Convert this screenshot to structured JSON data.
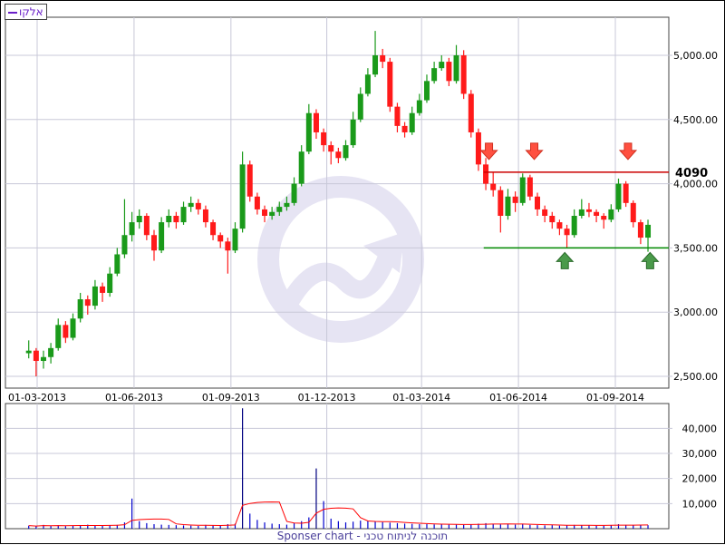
{
  "legend": {
    "label": "אלקו",
    "color": "#6a1fc8"
  },
  "footer": "Sponser chart - תוכנה לניתוח טכני",
  "colors": {
    "up": "#1a9a1a",
    "down": "#ff1a1a",
    "volume": "#0000cc",
    "volume_ma": "#ff0000",
    "grid": "#c8c8d8",
    "resistance": "#cc0000",
    "support": "#008800",
    "watermark": "#e6e4f3"
  },
  "chart_data": [
    {
      "type": "candlestick",
      "title": "",
      "ylim": [
        2400,
        5200
      ],
      "yticks": [
        2500,
        3000,
        3500,
        4000,
        4500,
        5000
      ],
      "ytick_labels": [
        "2,500.00",
        "3,000.00",
        "3,500.00",
        "4,000.00",
        "4,500.00",
        "5,000.00"
      ],
      "xticks": [
        "2013-03-01",
        "2013-06-01",
        "2013-09-01",
        "2013-12-01",
        "2014-03-01",
        "2014-06-01",
        "2014-09-01"
      ],
      "xtick_labels": [
        "01-03-2013",
        "01-06-2013",
        "01-09-2013",
        "01-12-2013",
        "01-03-2014",
        "01-06-2014",
        "01-09-2014"
      ],
      "grid": true,
      "candles": [
        [
          "2013-02-21",
          2680,
          2780,
          2640,
          2700
        ],
        [
          "2013-02-28",
          2700,
          2720,
          2500,
          2620
        ],
        [
          "2013-03-07",
          2620,
          2700,
          2560,
          2650
        ],
        [
          "2013-03-14",
          2650,
          2760,
          2600,
          2720
        ],
        [
          "2013-03-21",
          2720,
          2950,
          2700,
          2900
        ],
        [
          "2013-03-28",
          2900,
          2930,
          2760,
          2800
        ],
        [
          "2013-04-04",
          2800,
          2990,
          2780,
          2950
        ],
        [
          "2013-04-11",
          2950,
          3150,
          2920,
          3100
        ],
        [
          "2013-04-18",
          3100,
          3130,
          2980,
          3050
        ],
        [
          "2013-04-25",
          3050,
          3250,
          3020,
          3200
        ],
        [
          "2013-05-02",
          3200,
          3230,
          3080,
          3150
        ],
        [
          "2013-05-09",
          3150,
          3350,
          3120,
          3300
        ],
        [
          "2013-05-16",
          3300,
          3500,
          3280,
          3450
        ],
        [
          "2013-05-23",
          3450,
          3880,
          3420,
          3600
        ],
        [
          "2013-05-30",
          3600,
          3780,
          3550,
          3700
        ],
        [
          "2013-06-06",
          3700,
          3800,
          3650,
          3750
        ],
        [
          "2013-06-13",
          3750,
          3770,
          3560,
          3600
        ],
        [
          "2013-06-20",
          3600,
          3640,
          3400,
          3480
        ],
        [
          "2013-06-27",
          3480,
          3740,
          3460,
          3700
        ],
        [
          "2013-07-04",
          3700,
          3800,
          3660,
          3750
        ],
        [
          "2013-07-11",
          3750,
          3780,
          3650,
          3700
        ],
        [
          "2013-07-18",
          3700,
          3860,
          3680,
          3820
        ],
        [
          "2013-07-25",
          3820,
          3900,
          3780,
          3850
        ],
        [
          "2013-08-01",
          3850,
          3880,
          3760,
          3800
        ],
        [
          "2013-08-08",
          3800,
          3830,
          3660,
          3700
        ],
        [
          "2013-08-15",
          3700,
          3720,
          3560,
          3600
        ],
        [
          "2013-08-22",
          3600,
          3620,
          3500,
          3550
        ],
        [
          "2013-08-29",
          3550,
          3580,
          3300,
          3480
        ],
        [
          "2013-09-05",
          3480,
          3700,
          3460,
          3650
        ],
        [
          "2013-09-12",
          3650,
          4250,
          3620,
          4150
        ],
        [
          "2013-09-19",
          4150,
          4180,
          3860,
          3900
        ],
        [
          "2013-09-26",
          3900,
          3930,
          3760,
          3800
        ],
        [
          "2013-10-03",
          3800,
          3830,
          3700,
          3750
        ],
        [
          "2013-10-10",
          3750,
          3820,
          3720,
          3780
        ],
        [
          "2013-10-17",
          3780,
          3860,
          3750,
          3820
        ],
        [
          "2013-10-24",
          3820,
          3900,
          3790,
          3850
        ],
        [
          "2013-10-31",
          3850,
          4050,
          3830,
          4000
        ],
        [
          "2013-11-07",
          4000,
          4300,
          3980,
          4250
        ],
        [
          "2013-11-14",
          4250,
          4620,
          4230,
          4550
        ],
        [
          "2013-11-21",
          4550,
          4580,
          4350,
          4400
        ],
        [
          "2013-11-28",
          4400,
          4430,
          4250,
          4300
        ],
        [
          "2013-12-05",
          4300,
          4330,
          4150,
          4250
        ],
        [
          "2013-12-12",
          4250,
          4280,
          4160,
          4200
        ],
        [
          "2013-12-19",
          4200,
          4340,
          4180,
          4300
        ],
        [
          "2013-12-26",
          4300,
          4560,
          4280,
          4500
        ],
        [
          "2014-01-02",
          4500,
          4750,
          4480,
          4700
        ],
        [
          "2014-01-09",
          4700,
          4900,
          4680,
          4850
        ],
        [
          "2014-01-16",
          4850,
          5190,
          4830,
          5000
        ],
        [
          "2014-01-23",
          5000,
          5050,
          4900,
          4950
        ],
        [
          "2014-01-30",
          4950,
          4980,
          4560,
          4600
        ],
        [
          "2014-02-06",
          4600,
          4630,
          4400,
          4450
        ],
        [
          "2014-02-13",
          4450,
          4480,
          4360,
          4400
        ],
        [
          "2014-02-20",
          4400,
          4600,
          4380,
          4550
        ],
        [
          "2014-02-27",
          4550,
          4700,
          4530,
          4650
        ],
        [
          "2014-03-06",
          4650,
          4850,
          4630,
          4800
        ],
        [
          "2014-03-13",
          4800,
          4950,
          4780,
          4900
        ],
        [
          "2014-03-20",
          4900,
          5000,
          4880,
          4950
        ],
        [
          "2014-03-27",
          4950,
          4980,
          4760,
          4800
        ],
        [
          "2014-04-03",
          4800,
          5080,
          4780,
          5000
        ],
        [
          "2014-04-10",
          5000,
          5040,
          4660,
          4700
        ],
        [
          "2014-04-17",
          4700,
          4730,
          4360,
          4400
        ],
        [
          "2014-04-24",
          4400,
          4430,
          4100,
          4150
        ],
        [
          "2014-05-01",
          4150,
          4200,
          3950,
          4000
        ],
        [
          "2014-05-08",
          4000,
          4090,
          3900,
          3950
        ],
        [
          "2014-05-15",
          3950,
          3980,
          3620,
          3750
        ],
        [
          "2014-05-22",
          3750,
          3960,
          3720,
          3900
        ],
        [
          "2014-05-29",
          3900,
          3940,
          3780,
          3850
        ],
        [
          "2014-06-05",
          3850,
          4080,
          3830,
          4050
        ],
        [
          "2014-06-12",
          4050,
          4070,
          3870,
          3900
        ],
        [
          "2014-06-19",
          3900,
          3930,
          3750,
          3800
        ],
        [
          "2014-06-26",
          3800,
          3830,
          3700,
          3750
        ],
        [
          "2014-07-03",
          3750,
          3780,
          3650,
          3700
        ],
        [
          "2014-07-10",
          3700,
          3720,
          3600,
          3650
        ],
        [
          "2014-07-17",
          3650,
          3680,
          3500,
          3600
        ],
        [
          "2014-07-24",
          3600,
          3800,
          3580,
          3750
        ],
        [
          "2014-07-31",
          3750,
          3880,
          3730,
          3800
        ],
        [
          "2014-08-07",
          3800,
          3850,
          3740,
          3780
        ],
        [
          "2014-08-14",
          3780,
          3800,
          3700,
          3750
        ],
        [
          "2014-08-21",
          3750,
          3770,
          3650,
          3720
        ],
        [
          "2014-08-28",
          3720,
          3840,
          3700,
          3800
        ],
        [
          "2014-09-04",
          3800,
          4040,
          3780,
          4000
        ],
        [
          "2014-09-11",
          4000,
          4020,
          3820,
          3850
        ],
        [
          "2014-09-18",
          3850,
          3870,
          3660,
          3700
        ],
        [
          "2014-09-25",
          3700,
          3720,
          3530,
          3580
        ],
        [
          "2014-10-02",
          3580,
          3720,
          3470,
          3680
        ]
      ],
      "annotations": {
        "resistance": {
          "value": 4090,
          "label": "4090",
          "from": "2014-04-29"
        },
        "support": {
          "value": 3500,
          "from": "2014-04-29"
        },
        "down_arrows": [
          "2014-05-04",
          "2014-06-16",
          "2014-09-13"
        ],
        "up_arrows": [
          "2014-07-15",
          "2014-10-04"
        ]
      }
    },
    {
      "type": "bar",
      "title": "",
      "ylim": [
        0,
        50000
      ],
      "yticks": [
        10000,
        20000,
        30000,
        40000
      ],
      "ytick_labels": [
        "10,000",
        "20,000",
        "30,000",
        "40,000"
      ],
      "volumes": [
        1200,
        900,
        1500,
        1100,
        1400,
        1000,
        1300,
        1200,
        1600,
        1100,
        1400,
        1300,
        1500,
        2500,
        12000,
        3000,
        2200,
        1800,
        1600,
        1500,
        1400,
        1300,
        1200,
        1100,
        1500,
        1300,
        1200,
        1800,
        2000,
        48000,
        6000,
        3500,
        2500,
        2000,
        1800,
        1600,
        2200,
        3000,
        4500,
        24000,
        11000,
        4000,
        3000,
        2500,
        2800,
        3200,
        3000,
        2800,
        2600,
        2400,
        2200,
        2000,
        1900,
        1800,
        1800,
        1700,
        1700,
        1600,
        1600,
        1500,
        1800,
        2000,
        2200,
        1900,
        1700,
        1800,
        1600,
        2000,
        1500,
        1400,
        1300,
        1400,
        1200,
        1300,
        1500,
        1400,
        1300,
        1200,
        1200,
        1400,
        1800,
        1500,
        1300,
        1600,
        1400
      ],
      "moving_average": true
    }
  ]
}
